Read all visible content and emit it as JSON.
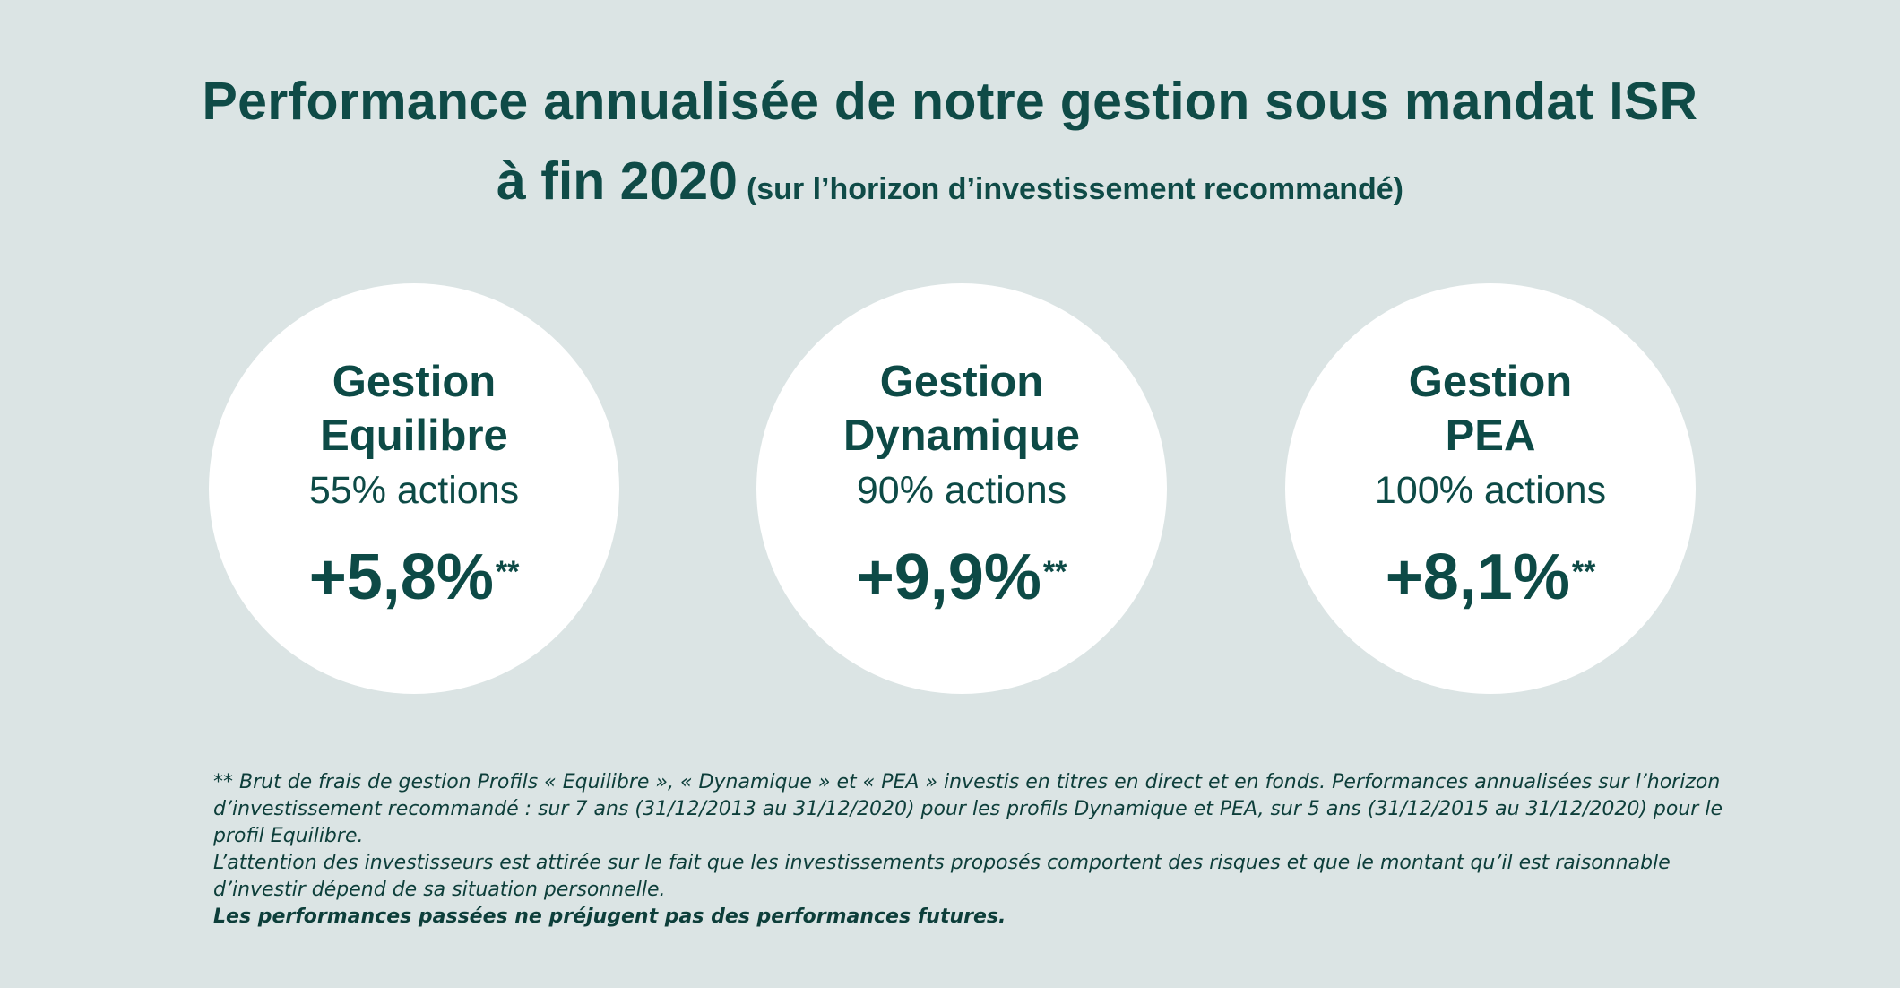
{
  "title": {
    "line1": "Performance annualisée de notre gestion sous mandat ISR",
    "line2_main": "à fin 2020",
    "line2_sub": "(sur l’horizon d’investissement recommandé)"
  },
  "cards": [
    {
      "name_line1": "Gestion",
      "name_line2": "Equilibre",
      "allocation": "55% actions",
      "performance": "+5,8%",
      "marker": "**"
    },
    {
      "name_line1": "Gestion",
      "name_line2": "Dynamique",
      "allocation": "90% actions",
      "performance": "+9,9%",
      "marker": "**"
    },
    {
      "name_line1": "Gestion",
      "name_line2": "PEA",
      "allocation": "100% actions",
      "performance": "+8,1%",
      "marker": "**"
    }
  ],
  "footnote": {
    "p1": "** Brut de frais de gestion Profils « Equilibre », « Dynamique » et « PEA » investis en titres en direct et en fonds. Performances annualisées sur l’horizon d’investissement recommandé :  sur 7 ans (31/12/2013 au 31/12/2020) pour les profils Dynamique et PEA, sur 5 ans (31/12/2015 au 31/12/2020) pour le profil Equilibre.",
    "p2": "L’attention des investisseurs est attirée sur le fait que les investissements proposés comportent des risques et que le montant qu’il est raisonnable d’investir dépend de sa situation personnelle.",
    "p3": "Les performances passées ne préjugent pas des performances futures."
  },
  "colors": {
    "background": "#dbe4e4",
    "text": "#0d4a46",
    "circle": "#ffffff"
  }
}
